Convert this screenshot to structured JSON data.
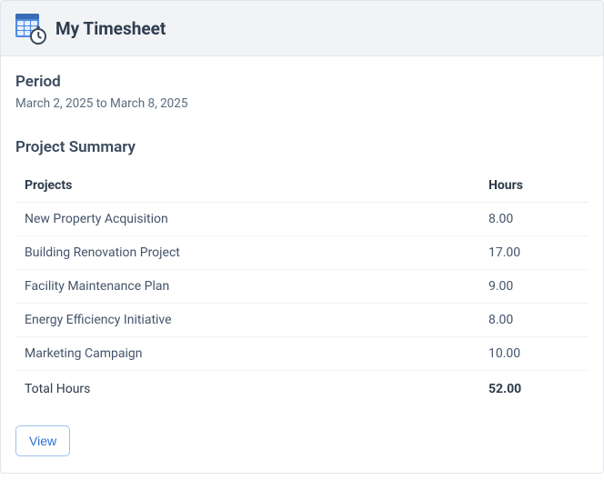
{
  "header": {
    "title": "My Timesheet",
    "icon": "timesheet-calendar-clock-icon"
  },
  "period": {
    "label": "Period",
    "text": "March 2, 2025 to March 8, 2025"
  },
  "summary": {
    "title": "Project Summary",
    "columns": {
      "project": "Projects",
      "hours": "Hours"
    },
    "rows": [
      {
        "project": "New Property Acquisition",
        "hours": "8.00"
      },
      {
        "project": "Building Renovation Project",
        "hours": "17.00"
      },
      {
        "project": "Facility Maintenance Plan",
        "hours": "9.00"
      },
      {
        "project": "Energy Efficiency Initiative",
        "hours": "8.00"
      },
      {
        "project": "Marketing Campaign",
        "hours": "10.00"
      }
    ],
    "total": {
      "label": "Total Hours",
      "value": "52.00"
    }
  },
  "actions": {
    "view_label": "View"
  },
  "style": {
    "card_border": "#e2e6eb",
    "header_bg": "#f1f3f5",
    "text_primary": "#2f3d4f",
    "text_muted": "#5a6b7e",
    "accent": "#2a6fd6",
    "button_border": "#9fc0ec",
    "row_border": "#f1f3f6",
    "total_border": "#d9dee4",
    "icon_calendar_bg": "#4f8ce0",
    "icon_clock_stroke": "#394a5c"
  }
}
